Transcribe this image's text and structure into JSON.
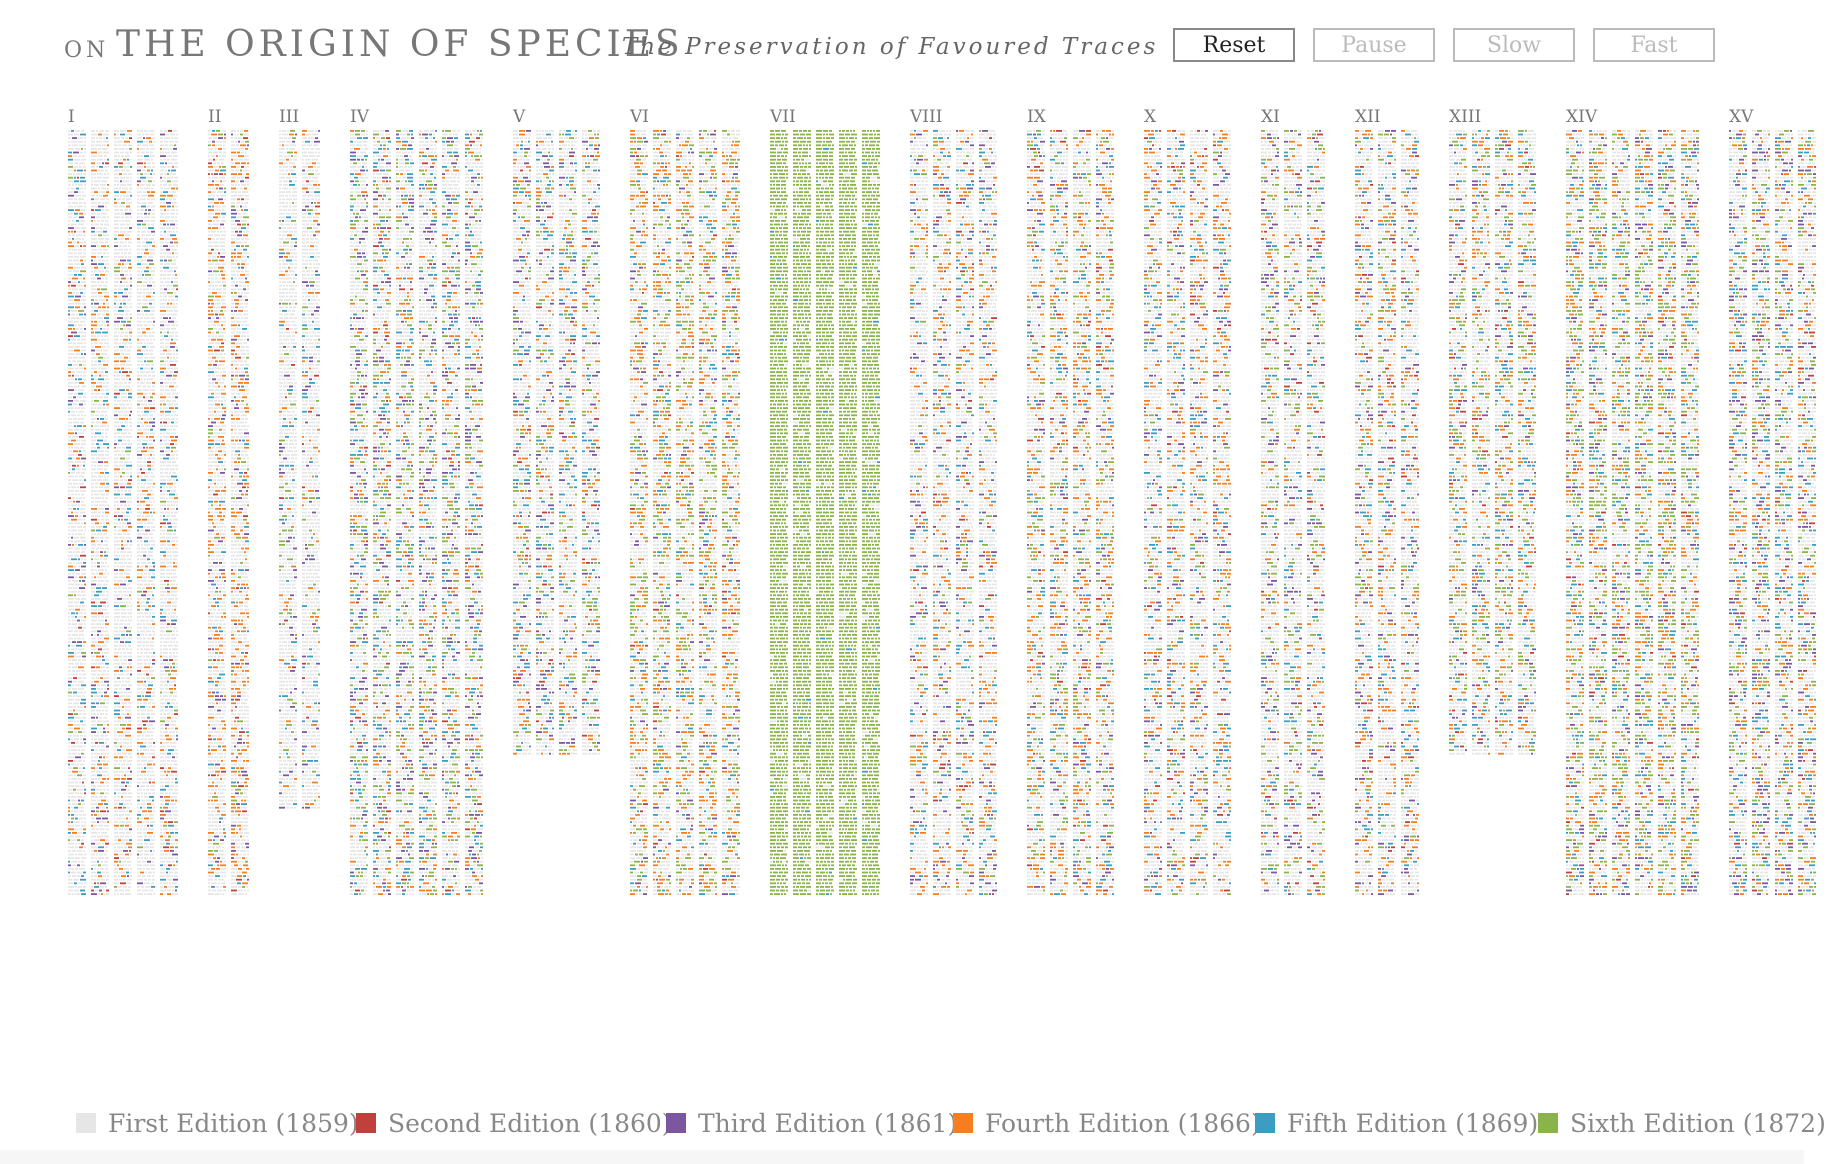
{
  "header": {
    "title_prefix": "ON",
    "title": "THE ORIGIN OF SPECIES",
    "subtitle": "The Preservation of Favoured Traces"
  },
  "controls": [
    {
      "label": "Reset",
      "active": true
    },
    {
      "label": "Pause",
      "active": false
    },
    {
      "label": "Slow",
      "active": false
    },
    {
      "label": "Fast",
      "active": false
    }
  ],
  "colors": {
    "first": "#e6e6e6",
    "second": "#c0413b",
    "third": "#7b57a0",
    "fourth": "#f57f20",
    "fifth": "#3a9dc1",
    "sixth": "#8ab44a"
  },
  "legend": [
    {
      "label": "First Edition (1859)",
      "key": "first"
    },
    {
      "label": "Second Edition (1860)",
      "key": "second"
    },
    {
      "label": "Third Edition (1861)",
      "key": "third"
    },
    {
      "label": "Fourth Edition (1866)",
      "key": "fourth"
    },
    {
      "label": "Fifth Edition (1869)",
      "key": "fifth"
    },
    {
      "label": "Sixth Edition (1872)",
      "key": "sixth"
    }
  ],
  "chart_data": {
    "type": "heatmap",
    "categories": [
      "I",
      "II",
      "III",
      "IV",
      "V",
      "VI",
      "VII",
      "VIII",
      "IX",
      "X",
      "XI",
      "XII",
      "XIII",
      "XIV",
      "XV"
    ],
    "series": [
      {
        "name": "First Edition (1859)",
        "key": "first"
      },
      {
        "name": "Second Edition (1860)",
        "key": "second"
      },
      {
        "name": "Third Edition (1861)",
        "key": "third"
      },
      {
        "name": "Fourth Edition (1866)",
        "key": "fourth"
      },
      {
        "name": "Fifth Edition (1869)",
        "key": "fifth"
      },
      {
        "name": "Sixth Edition (1872)",
        "key": "sixth"
      }
    ],
    "chapters": [
      {
        "label": "I",
        "columns": 5,
        "length": 0.98,
        "mix": {
          "second": 0.02,
          "third": 0.05,
          "fourth": 0.1,
          "fifth": 0.08,
          "sixth": 0.03
        }
      },
      {
        "label": "II",
        "columns": 2,
        "length": 0.98,
        "mix": {
          "second": 0.02,
          "third": 0.06,
          "fourth": 0.2,
          "fifth": 0.05,
          "sixth": 0.04
        }
      },
      {
        "label": "III",
        "columns": 2,
        "length": 0.87,
        "mix": {
          "second": 0.01,
          "third": 0.06,
          "fourth": 0.06,
          "fifth": 0.06,
          "sixth": 0.04
        }
      },
      {
        "label": "IV",
        "columns": 6,
        "length": 0.98,
        "mix": {
          "second": 0.02,
          "third": 0.1,
          "fourth": 0.1,
          "fifth": 0.1,
          "sixth": 0.12
        }
      },
      {
        "label": "V",
        "columns": 4,
        "length": 0.8,
        "mix": {
          "second": 0.02,
          "third": 0.07,
          "fourth": 0.1,
          "fifth": 0.1,
          "sixth": 0.08
        }
      },
      {
        "label": "VI",
        "columns": 5,
        "length": 0.98,
        "mix": {
          "second": 0.01,
          "third": 0.04,
          "fourth": 0.18,
          "fifth": 0.06,
          "sixth": 0.15
        }
      },
      {
        "label": "VII",
        "columns": 5,
        "length": 0.98,
        "mix": {
          "second": 0.0,
          "third": 0.0,
          "fourth": 0.0,
          "fifth": 0.01,
          "sixth": 0.95
        }
      },
      {
        "label": "VIII",
        "columns": 4,
        "length": 0.98,
        "mix": {
          "second": 0.02,
          "third": 0.06,
          "fourth": 0.12,
          "fifth": 0.08,
          "sixth": 0.05
        }
      },
      {
        "label": "IX",
        "columns": 4,
        "length": 0.98,
        "mix": {
          "second": 0.02,
          "third": 0.05,
          "fourth": 0.16,
          "fifth": 0.08,
          "sixth": 0.1
        }
      },
      {
        "label": "X",
        "columns": 4,
        "length": 0.98,
        "mix": {
          "second": 0.02,
          "third": 0.07,
          "fourth": 0.14,
          "fifth": 0.1,
          "sixth": 0.05
        }
      },
      {
        "label": "XI",
        "columns": 3,
        "length": 0.98,
        "mix": {
          "second": 0.02,
          "third": 0.08,
          "fourth": 0.08,
          "fifth": 0.06,
          "sixth": 0.1
        }
      },
      {
        "label": "XII",
        "columns": 3,
        "length": 0.98,
        "mix": {
          "second": 0.02,
          "third": 0.07,
          "fourth": 0.14,
          "fifth": 0.08,
          "sixth": 0.06
        }
      },
      {
        "label": "XIII",
        "columns": 4,
        "length": 0.8,
        "mix": {
          "second": 0.02,
          "third": 0.06,
          "fourth": 0.14,
          "fifth": 0.1,
          "sixth": 0.12
        }
      },
      {
        "label": "XIV",
        "columns": 6,
        "length": 0.98,
        "mix": {
          "second": 0.02,
          "third": 0.08,
          "fourth": 0.14,
          "fifth": 0.1,
          "sixth": 0.18
        }
      },
      {
        "label": "XV",
        "columns": 4,
        "length": 0.98,
        "mix": {
          "second": 0.02,
          "third": 0.1,
          "fourth": 0.12,
          "fifth": 0.1,
          "sixth": 0.12
        }
      }
    ],
    "legend_position": "bottom",
    "grid": false
  }
}
